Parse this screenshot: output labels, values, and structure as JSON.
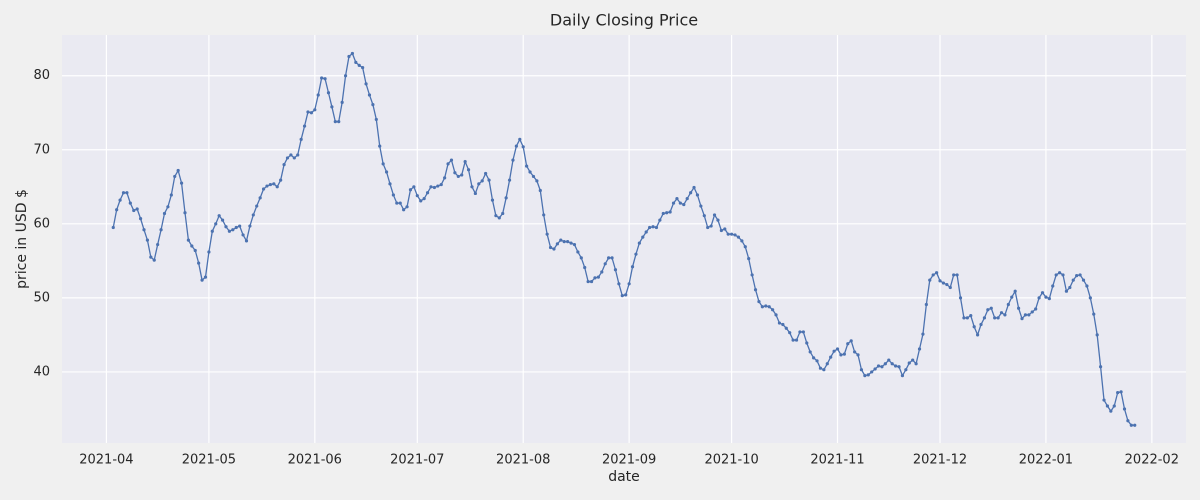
{
  "chart_data": {
    "type": "line",
    "title": "Daily Closing Price",
    "x_label": "date",
    "y_label": "price in USD $",
    "color": "#4c72b0",
    "grid": true,
    "markers": true,
    "xlim": [
      -13,
      316
    ],
    "ylim": [
      30.4,
      85.5
    ],
    "xticks": [
      {
        "value": 0,
        "label": "2021-04"
      },
      {
        "value": 30,
        "label": "2021-05"
      },
      {
        "value": 61,
        "label": "2021-06"
      },
      {
        "value": 91,
        "label": "2021-07"
      },
      {
        "value": 122,
        "label": "2021-08"
      },
      {
        "value": 153,
        "label": "2021-09"
      },
      {
        "value": 183,
        "label": "2021-10"
      },
      {
        "value": 214,
        "label": "2021-11"
      },
      {
        "value": 244,
        "label": "2021-12"
      },
      {
        "value": 275,
        "label": "2022-01"
      },
      {
        "value": 306,
        "label": "2022-02"
      }
    ],
    "yticks": [
      40,
      50,
      60,
      70,
      80
    ],
    "x": [
      2,
      3,
      4,
      5,
      6,
      7,
      8,
      9,
      10,
      11,
      12,
      13,
      14,
      15,
      16,
      17,
      18,
      19,
      20,
      21,
      22,
      23,
      24,
      25,
      26,
      27,
      28,
      29,
      30,
      31,
      32,
      33,
      34,
      35,
      36,
      37,
      38,
      39,
      40,
      41,
      42,
      43,
      44,
      45,
      46,
      47,
      48,
      49,
      50,
      51,
      52,
      53,
      54,
      55,
      56,
      57,
      58,
      59,
      60,
      61,
      62,
      63,
      64,
      65,
      66,
      67,
      68,
      69,
      70,
      71,
      72,
      73,
      74,
      75,
      76,
      77,
      78,
      79,
      80,
      81,
      82,
      83,
      84,
      85,
      86,
      87,
      88,
      89,
      90,
      91,
      92,
      93,
      94,
      95,
      96,
      97,
      98,
      99,
      100,
      101,
      102,
      103,
      104,
      105,
      106,
      107,
      108,
      109,
      110,
      111,
      112,
      113,
      114,
      115,
      116,
      117,
      118,
      119,
      120,
      121,
      122,
      123,
      124,
      125,
      126,
      127,
      128,
      129,
      130,
      131,
      132,
      133,
      134,
      135,
      136,
      137,
      138,
      139,
      140,
      141,
      142,
      143,
      144,
      145,
      146,
      147,
      148,
      149,
      150,
      151,
      152,
      153,
      154,
      155,
      156,
      157,
      158,
      159,
      160,
      161,
      162,
      163,
      164,
      165,
      166,
      167,
      168,
      169,
      170,
      171,
      172,
      173,
      174,
      175,
      176,
      177,
      178,
      179,
      180,
      181,
      182,
      183,
      184,
      185,
      186,
      187,
      188,
      189,
      190,
      191,
      192,
      193,
      194,
      195,
      196,
      197,
      198,
      199,
      200,
      201,
      202,
      203,
      204,
      205,
      206,
      207,
      208,
      209,
      210,
      211,
      212,
      213,
      214,
      215,
      216,
      217,
      218,
      219,
      220,
      221,
      222,
      223,
      224,
      225,
      226,
      227,
      228,
      229,
      230,
      231,
      232,
      233,
      234,
      235,
      236,
      237,
      238,
      239,
      240,
      241,
      242,
      243,
      244,
      245,
      246,
      247,
      248,
      249,
      250,
      251,
      252,
      253,
      254,
      255,
      256,
      257,
      258,
      259,
      260,
      261,
      262,
      263,
      264,
      265,
      266,
      267,
      268,
      269,
      270,
      271,
      272,
      273,
      274,
      275,
      276,
      277,
      278,
      279,
      280,
      281,
      282,
      283,
      284,
      285,
      286,
      287,
      288,
      289,
      290,
      291,
      292,
      293,
      294,
      295,
      296,
      297,
      298,
      299,
      300,
      301
    ],
    "values": [
      59.5,
      61.9,
      63.2,
      64.2,
      64.2,
      62.8,
      61.8,
      62.0,
      60.7,
      59.2,
      57.8,
      55.5,
      55.1,
      57.2,
      59.2,
      61.4,
      62.3,
      63.9,
      66.4,
      67.2,
      65.5,
      61.5,
      57.8,
      57.0,
      56.4,
      54.7,
      52.4,
      52.8,
      56.2,
      59.0,
      60.0,
      61.1,
      60.5,
      59.6,
      59.0,
      59.2,
      59.5,
      59.7,
      58.5,
      57.7,
      59.7,
      61.2,
      62.4,
      63.5,
      64.7,
      65.1,
      65.3,
      65.4,
      65.0,
      65.9,
      68.0,
      68.9,
      69.3,
      68.9,
      69.3,
      71.4,
      73.2,
      75.1,
      75.0,
      75.4,
      77.4,
      79.7,
      79.6,
      77.7,
      75.8,
      73.8,
      73.8,
      76.4,
      80.0,
      82.6,
      83.0,
      81.8,
      81.4,
      81.1,
      78.9,
      77.4,
      76.1,
      74.1,
      70.5,
      68.1,
      67.0,
      65.4,
      63.9,
      62.8,
      62.8,
      61.9,
      62.3,
      64.6,
      65.0,
      63.8,
      63.1,
      63.4,
      64.2,
      65.0,
      64.9,
      65.1,
      65.3,
      66.2,
      68.1,
      68.6,
      66.9,
      66.4,
      66.6,
      68.4,
      67.3,
      65.0,
      64.1,
      65.4,
      65.8,
      66.8,
      65.9,
      63.2,
      61.1,
      60.8,
      61.4,
      63.5,
      65.9,
      68.6,
      70.5,
      71.4,
      70.4,
      67.8,
      67.0,
      66.4,
      65.8,
      64.5,
      61.2,
      58.6,
      56.8,
      56.6,
      57.3,
      57.8,
      57.6,
      57.6,
      57.4,
      57.2,
      56.2,
      55.4,
      54.1,
      52.2,
      52.2,
      52.7,
      52.8,
      53.5,
      54.6,
      55.4,
      55.4,
      53.8,
      51.9,
      50.3,
      50.4,
      51.9,
      54.2,
      55.9,
      57.4,
      58.2,
      58.9,
      59.5,
      59.6,
      59.5,
      60.5,
      61.4,
      61.5,
      61.6,
      62.8,
      63.4,
      62.8,
      62.6,
      63.4,
      64.2,
      64.9,
      63.9,
      62.4,
      61.1,
      59.5,
      59.7,
      61.2,
      60.5,
      59.1,
      59.3,
      58.6,
      58.6,
      58.5,
      58.2,
      57.7,
      56.9,
      55.3,
      53.1,
      51.1,
      49.5,
      48.8,
      48.9,
      48.8,
      48.4,
      47.7,
      46.6,
      46.4,
      45.9,
      45.3,
      44.3,
      44.3,
      45.4,
      45.4,
      43.9,
      42.7,
      41.9,
      41.5,
      40.5,
      40.3,
      41.1,
      42.0,
      42.8,
      43.1,
      42.3,
      42.4,
      43.8,
      44.2,
      42.7,
      42.3,
      40.3,
      39.5,
      39.6,
      40.0,
      40.4,
      40.8,
      40.7,
      41.1,
      41.6,
      41.1,
      40.8,
      40.7,
      39.5,
      40.3,
      41.2,
      41.6,
      41.1,
      43.1,
      45.1,
      49.1,
      52.4,
      53.1,
      53.4,
      52.3,
      52.0,
      51.8,
      51.4,
      53.1,
      53.1,
      50.0,
      47.3,
      47.3,
      47.6,
      46.1,
      45.0,
      46.4,
      47.3,
      48.4,
      48.6,
      47.3,
      47.3,
      48.0,
      47.7,
      49.1,
      50.1,
      50.9,
      48.6,
      47.2,
      47.7,
      47.7,
      48.1,
      48.5,
      50.0,
      50.7,
      50.1,
      49.9,
      51.6,
      53.1,
      53.4,
      53.1,
      50.9,
      51.4,
      52.4,
      53.0,
      53.1,
      52.4,
      51.6,
      50.0,
      47.8,
      45.0,
      40.7,
      36.2,
      35.4,
      34.7,
      35.4,
      37.2,
      37.3,
      35.0,
      33.4,
      32.8,
      32.8
    ]
  }
}
